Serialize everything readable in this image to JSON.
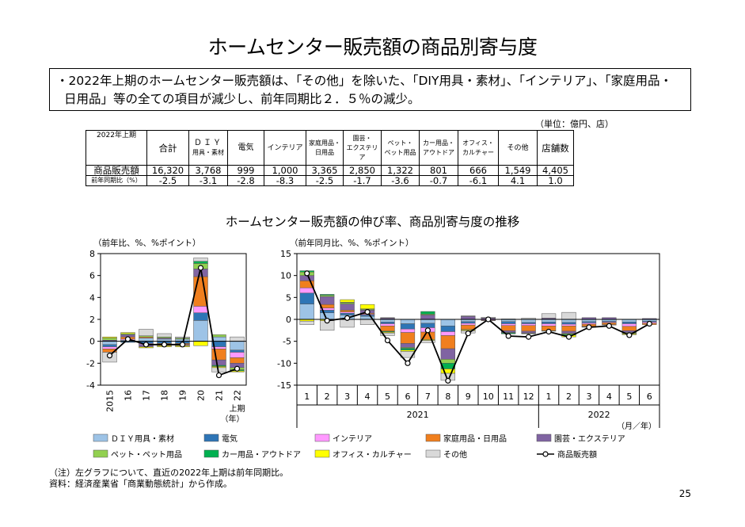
{
  "title": "ホームセンター販売額の商品別寄与度",
  "summary": {
    "line1": "・2022年上期のホームセンター販売額は、「その他」を除いた、「DIY用具・素材」、「インテリア」、「家庭用品・",
    "line2": "日用品」等の全ての項目が減少し、前年同期比２．５％の減少。"
  },
  "unit": "（単位：億円、店）",
  "table": {
    "corner": "2022年上期",
    "headers": [
      {
        "l1": "合計",
        "l2": ""
      },
      {
        "l1": "ＤＩＹ",
        "l2": "用具・素材"
      },
      {
        "l1": "電気",
        "l2": ""
      },
      {
        "l1": "インテリア",
        "l2": ""
      },
      {
        "l1": "家庭用品・",
        "l2": "日用品"
      },
      {
        "l1": "園芸・",
        "l2": "エクステリア"
      },
      {
        "l1": "ペット・",
        "l2": "ペット用品"
      },
      {
        "l1": "カー用品・",
        "l2": "アウトドア"
      },
      {
        "l1": "オフィス・",
        "l2": "カルチャー"
      },
      {
        "l1": "その他",
        "l2": ""
      },
      {
        "l1": "店舗数",
        "l2": ""
      }
    ],
    "row1_label": "商品販売額",
    "row1": [
      "16,320",
      "3,768",
      "999",
      "1,000",
      "3,365",
      "2,850",
      "1,322",
      "801",
      "666",
      "1,549",
      "4,405"
    ],
    "row2_label": "前年同期比（%）",
    "row2": [
      "-2.5",
      "-3.1",
      "-2.8",
      "-8.3",
      "-2.5",
      "-1.7",
      "-3.6",
      "-0.7",
      "-6.1",
      "4.1",
      "1.0"
    ]
  },
  "chart_title": "ホームセンター販売額の伸び率、商品別寄与度の推移",
  "colors": {
    "diy": "#9dc3e6",
    "denki": "#2e75b6",
    "interior": "#ff99ff",
    "katei": "#f07f1e",
    "engei": "#8064a2",
    "pet": "#92d050",
    "car": "#00b050",
    "office": "#ffff00",
    "other": "#d9d9d9",
    "line": "#000000"
  },
  "chart_data": [
    {
      "type": "bar",
      "stacked": true,
      "ylabel": "（前年比、%、%ポイント）",
      "ylim": [
        -4,
        8
      ],
      "yticks": [
        "8",
        "6",
        "4",
        "2",
        "0",
        "-2",
        "-4"
      ],
      "categories": [
        "2015",
        "16",
        "17",
        "18",
        "19",
        "20",
        "21",
        "22"
      ],
      "x_extra": [
        "上期",
        "（年）"
      ],
      "series": [
        {
          "key": "diy",
          "name": "ＤＩＹ用具・素材",
          "values": [
            -0.3,
            0.1,
            0.3,
            0.2,
            0.2,
            1.9,
            0.4,
            -0.8
          ]
        },
        {
          "key": "denki",
          "name": "電気",
          "values": [
            -0.2,
            -0.1,
            -0.2,
            -0.2,
            -0.2,
            0.7,
            -0.5,
            -0.2
          ]
        },
        {
          "key": "interior",
          "name": "インテリア",
          "values": [
            -0.2,
            0.1,
            -0.1,
            0.0,
            0.0,
            0.6,
            -0.2,
            -0.5
          ]
        },
        {
          "key": "katei",
          "name": "家庭用品・日用品",
          "values": [
            -0.3,
            0.2,
            0.1,
            -0.2,
            -0.1,
            2.7,
            -1.0,
            -0.5
          ]
        },
        {
          "key": "engei",
          "name": "園芸・エクステリア",
          "values": [
            0.1,
            0.2,
            -0.2,
            0.1,
            -0.1,
            0.7,
            -0.5,
            -0.4
          ]
        },
        {
          "key": "pet",
          "name": "ペット・ペット用品",
          "values": [
            0.2,
            0.1,
            0.1,
            0.1,
            0.1,
            0.5,
            0.2,
            -0.2
          ]
        },
        {
          "key": "car",
          "name": "カー用品・アウトドア",
          "values": [
            0.0,
            0.0,
            0.0,
            0.0,
            0.0,
            0.2,
            -0.1,
            -0.1
          ]
        },
        {
          "key": "office",
          "name": "オフィス・カルチャー",
          "values": [
            0.1,
            0.1,
            -0.1,
            -0.1,
            -0.1,
            -0.4,
            -0.1,
            -0.1
          ]
        },
        {
          "key": "other",
          "name": "その他",
          "values": [
            -0.9,
            0.0,
            0.6,
            0.3,
            0.1,
            0.3,
            -0.4,
            0.4
          ]
        }
      ],
      "line": {
        "key": "line",
        "name": "商品販売額",
        "values": [
          -1.3,
          0.2,
          -0.3,
          -0.3,
          -0.3,
          6.7,
          -3.1,
          -2.5
        ]
      }
    },
    {
      "type": "bar",
      "stacked": true,
      "ylabel": "（前年同月比、%、%ポイント）",
      "ylim": [
        -15,
        15
      ],
      "yticks": [
        "15",
        "10",
        "5",
        "0",
        "-5",
        "-10",
        "-15"
      ],
      "categories": [
        "1",
        "2",
        "3",
        "4",
        "5",
        "6",
        "7",
        "8",
        "9",
        "10",
        "11",
        "12",
        "1",
        "2",
        "3",
        "4",
        "5",
        "6"
      ],
      "year_labels": [
        "2021",
        "2022"
      ],
      "x_unit": "（月／年）",
      "series": [
        {
          "key": "diy",
          "name": "ＤＩＹ用具・素材",
          "values": [
            3.5,
            1.5,
            1.0,
            0.7,
            -0.6,
            -1.0,
            -0.9,
            -1.5,
            -0.5,
            0.0,
            -0.5,
            -0.7,
            -0.6,
            -0.7,
            -0.5,
            -0.4,
            -0.6,
            -0.4
          ]
        },
        {
          "key": "denki",
          "name": "電気",
          "values": [
            2.5,
            0.6,
            0.4,
            0.3,
            -0.4,
            -1.2,
            -1.0,
            -1.3,
            -0.4,
            0.0,
            -0.5,
            -0.3,
            -0.4,
            -0.4,
            -0.3,
            -0.2,
            -0.4,
            -0.2
          ]
        },
        {
          "key": "interior",
          "name": "インテリア",
          "values": [
            1.2,
            0.5,
            0.3,
            0.2,
            -0.5,
            -0.8,
            -1.0,
            -0.9,
            -0.4,
            -0.2,
            -0.4,
            -0.4,
            -0.5,
            -0.4,
            -0.3,
            -0.2,
            -0.6,
            -0.3
          ]
        },
        {
          "key": "katei",
          "name": "家庭用品・日用品",
          "values": [
            1.6,
            0.8,
            0.4,
            0.2,
            -1.2,
            -2.5,
            -1.7,
            -3.0,
            -1.0,
            -0.1,
            -1.2,
            -1.3,
            -1.1,
            -1.2,
            -0.5,
            -0.4,
            -1.0,
            -0.3
          ]
        },
        {
          "key": "engei",
          "name": "園芸・エクステリア",
          "values": [
            1.2,
            1.8,
            1.4,
            0.7,
            0.3,
            -0.9,
            1.0,
            -2.4,
            0.7,
            0.3,
            -0.4,
            -0.4,
            0.3,
            -0.5,
            0.4,
            0.4,
            -0.4,
            0.2
          ]
        },
        {
          "key": "pet",
          "name": "ペット・ペット用品",
          "values": [
            0.8,
            0.3,
            0.3,
            0.2,
            0.1,
            -0.2,
            0.2,
            -0.9,
            0.1,
            0.0,
            -0.1,
            -0.1,
            0.0,
            -0.2,
            0.0,
            0.0,
            -0.2,
            0.0
          ]
        },
        {
          "key": "car",
          "name": "カー用品・アウトドア",
          "values": [
            0.3,
            0.2,
            0.1,
            0.1,
            -0.2,
            -0.4,
            0.6,
            -1.3,
            -0.1,
            0.0,
            -0.2,
            0.0,
            -0.1,
            -0.2,
            -0.1,
            0.0,
            -0.1,
            0.0
          ]
        },
        {
          "key": "office",
          "name": "オフィス・カルチャー",
          "values": [
            -0.4,
            -0.3,
            0.6,
            1.0,
            -0.2,
            -0.3,
            -0.2,
            -1.0,
            -0.2,
            0.0,
            0.0,
            -0.1,
            0.0,
            -0.4,
            0.0,
            0.0,
            -0.2,
            0.0
          ]
        },
        {
          "key": "other",
          "name": "その他",
          "values": [
            -0.8,
            -2.2,
            -1.8,
            -1.2,
            -0.6,
            -1.4,
            -0.5,
            -1.6,
            -0.5,
            0.2,
            0.1,
            0.3,
            1.0,
            1.6,
            -0.1,
            -0.1,
            0.0,
            0.0
          ]
        }
      ],
      "line": {
        "key": "line",
        "name": "商品販売額",
        "values": [
          10.5,
          -0.3,
          0.3,
          1.7,
          -4.8,
          -10.0,
          -2.5,
          -14.0,
          -3.2,
          0.0,
          -3.8,
          -4.0,
          -2.8,
          -4.0,
          -1.8,
          -1.5,
          -3.6,
          -1.0
        ]
      }
    }
  ],
  "notes": {
    "note1": "（注）左グラフについて、直近の2022年上期は前年同期比。",
    "note2": "資料：経済産業省「商業動態統計」から作成。"
  },
  "page_number": "25"
}
